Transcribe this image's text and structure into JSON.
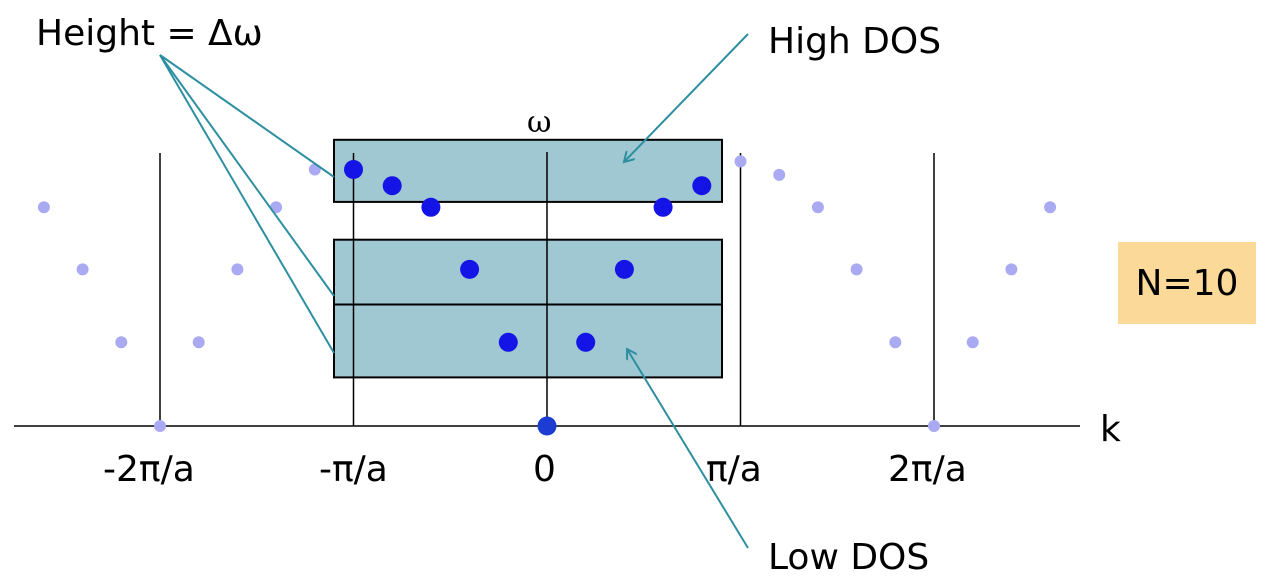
{
  "colors": {
    "band_fill": "#9fc8d3",
    "arrow": "#2e8fa0",
    "dot_dark": "#1414e6",
    "dot_light": "#aaaaf2",
    "dot_center": "#1c3cd2",
    "note_bg": "#fbd998"
  },
  "labels": {
    "height": "Height = Δω",
    "high_dos": "High DOS",
    "low_dos": "Low DOS",
    "omega": "ω",
    "k": "k",
    "n": "N=10"
  },
  "ticks": {
    "neg2pi": "-2π/a",
    "negpi": "-π/a",
    "zero": "0",
    "pi": "π/a",
    "twopi": "2π/a"
  },
  "chart_data": {
    "type": "scatter",
    "xlabel": "k",
    "ylabel": "ω",
    "x_unit": "π/a",
    "xlim": [
      -2.5,
      2.5
    ],
    "y_scale": "ω relative to maximum (unlabeled)",
    "series": [
      {
        "role": "first-zone",
        "color": "dark",
        "points": [
          [
            -1.0,
            0.95
          ],
          [
            -0.8,
            0.89
          ],
          [
            -0.6,
            0.81
          ],
          [
            -0.4,
            0.58
          ],
          [
            -0.2,
            0.31
          ],
          [
            0.0,
            0.0
          ],
          [
            0.2,
            0.31
          ],
          [
            0.4,
            0.58
          ],
          [
            0.6,
            0.81
          ],
          [
            0.8,
            0.89
          ]
        ]
      },
      {
        "role": "repeated",
        "color": "light",
        "points": [
          [
            -2.6,
            0.81
          ],
          [
            -2.4,
            0.58
          ],
          [
            -2.2,
            0.31
          ],
          [
            -2.0,
            0.0
          ],
          [
            -1.8,
            0.31
          ],
          [
            -1.6,
            0.58
          ],
          [
            -1.4,
            0.81
          ],
          [
            -1.2,
            0.95
          ],
          [
            1.0,
            0.98
          ],
          [
            1.2,
            0.93
          ],
          [
            1.4,
            0.81
          ],
          [
            1.6,
            0.58
          ],
          [
            1.8,
            0.31
          ],
          [
            2.0,
            0.0
          ],
          [
            2.2,
            0.31
          ],
          [
            2.4,
            0.58
          ],
          [
            2.6,
            0.81
          ]
        ]
      }
    ],
    "bands": [
      {
        "omega_range": [
          0.83,
          1.06
        ],
        "annotation": "High DOS"
      },
      {
        "omega_range": [
          0.45,
          0.69
        ],
        "annotation": ""
      },
      {
        "omega_range": [
          0.18,
          0.45
        ],
        "annotation": "Low DOS"
      }
    ]
  }
}
